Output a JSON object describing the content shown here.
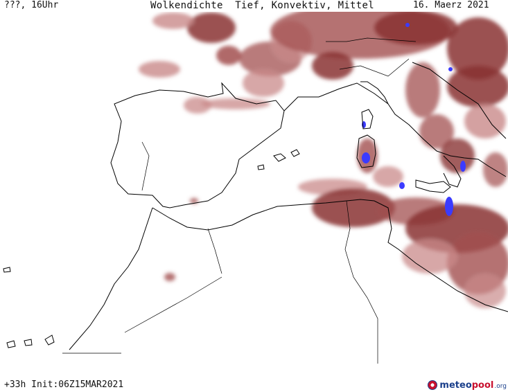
{
  "header": {
    "left": "???, 16Uhr",
    "center": "Wolkendichte  Tief, Konvektiv, Mittel",
    "right": "16. Maerz 2021"
  },
  "footer": {
    "run_info": "+33h Init:06Z15MAR2021"
  },
  "brand": {
    "part1": "meteo",
    "part2": "pool",
    "part3": ".org"
  },
  "colors": {
    "cloud_dense": "#8a3434",
    "cloud_mid": "#a24f4f",
    "cloud_light": "#c98a8a",
    "convective": "#3b3bff",
    "coast": "#000000",
    "background": "#ffffff"
  },
  "map_layers": [
    "coastlines",
    "borders",
    "cloud_density",
    "convective_cells"
  ]
}
